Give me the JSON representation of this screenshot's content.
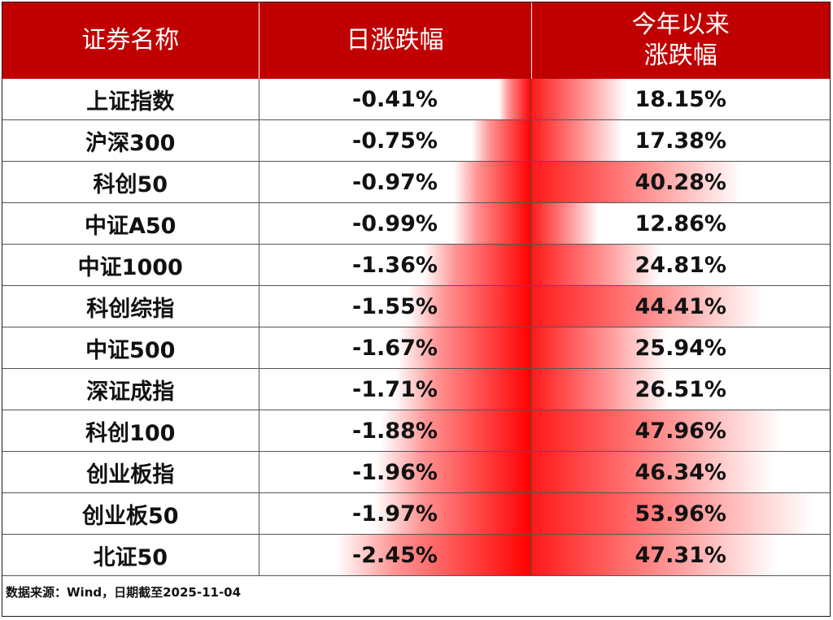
{
  "header": {
    "col1": "证券名称",
    "col2": "日涨跌幅",
    "col3_line1": "今年以来",
    "col3_line2": "涨跌幅"
  },
  "chart_data": {
    "type": "table",
    "columns": [
      "证券名称",
      "日涨跌幅",
      "今年以来涨跌幅"
    ],
    "rows": [
      {
        "name": "上证指数",
        "day": -0.41,
        "ytd": 18.15,
        "day_label": "-0.41%",
        "ytd_label": "18.15%"
      },
      {
        "name": "沪深300",
        "day": -0.75,
        "ytd": 17.38,
        "day_label": "-0.75%",
        "ytd_label": "17.38%"
      },
      {
        "name": "科创50",
        "day": -0.97,
        "ytd": 40.28,
        "day_label": "-0.97%",
        "ytd_label": "40.28%"
      },
      {
        "name": "中证A50",
        "day": -0.99,
        "ytd": 12.86,
        "day_label": "-0.99%",
        "ytd_label": "12.86%"
      },
      {
        "name": "中证1000",
        "day": -1.36,
        "ytd": 24.81,
        "day_label": "-1.36%",
        "ytd_label": "24.81%"
      },
      {
        "name": "科创综指",
        "day": -1.55,
        "ytd": 44.41,
        "day_label": "-1.55%",
        "ytd_label": "44.41%"
      },
      {
        "name": "中证500",
        "day": -1.67,
        "ytd": 25.94,
        "day_label": "-1.67%",
        "ytd_label": "25.94%"
      },
      {
        "name": "深证成指",
        "day": -1.71,
        "ytd": 26.51,
        "day_label": "-1.71%",
        "ytd_label": "26.51%"
      },
      {
        "name": "科创100",
        "day": -1.88,
        "ytd": 47.96,
        "day_label": "-1.88%",
        "ytd_label": "47.96%"
      },
      {
        "name": "创业板指",
        "day": -1.96,
        "ytd": 46.34,
        "day_label": "-1.96%",
        "ytd_label": "46.34%"
      },
      {
        "name": "创业板50",
        "day": -1.97,
        "ytd": 53.96,
        "day_label": "-1.97%",
        "ytd_label": "53.96%"
      },
      {
        "name": "北证50",
        "day": -2.45,
        "ytd": 47.31,
        "day_label": "-2.45%",
        "ytd_label": "47.31%"
      }
    ],
    "day_scale_max_abs": 2.45,
    "ytd_scale_max": 53.96,
    "header_color": "#c00000",
    "bar_color": "#ff0000"
  },
  "footnote": "数据来源：Wind，日期截至2025-11-04"
}
